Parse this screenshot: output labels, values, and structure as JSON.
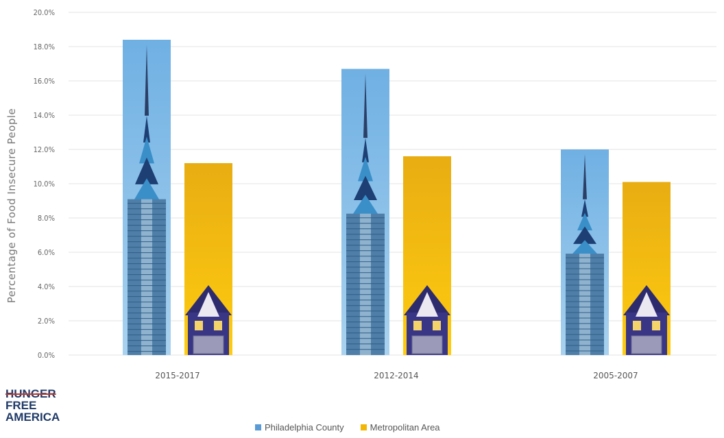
{
  "chart_data": {
    "type": "bar",
    "categories": [
      "2015-2017",
      "2012-2014",
      "2005-2007"
    ],
    "series": [
      {
        "name": "Philadelphia County",
        "values": [
          18.4,
          16.7,
          12.0
        ],
        "color": "#5b9bd5"
      },
      {
        "name": "Metropolitan Area",
        "values": [
          11.2,
          11.6,
          10.1
        ],
        "color": "#f2b705"
      }
    ],
    "ylabel": "Percentage of Food Insecure People",
    "ylim": [
      0,
      20
    ],
    "yticks": [
      "0.0%",
      "2.0%",
      "4.0%",
      "6.0%",
      "8.0%",
      "10.0%",
      "12.0%",
      "14.0%",
      "16.0%",
      "18.0%",
      "20.0%"
    ],
    "grid": true,
    "legend": "bottom",
    "bar_images": {
      "Philadelphia County": "skyscraper-icon",
      "Metropolitan Area": "house-icon"
    }
  },
  "logo": {
    "line1": "HUNGER",
    "line2": "FREE",
    "line3": "AMERICA"
  }
}
